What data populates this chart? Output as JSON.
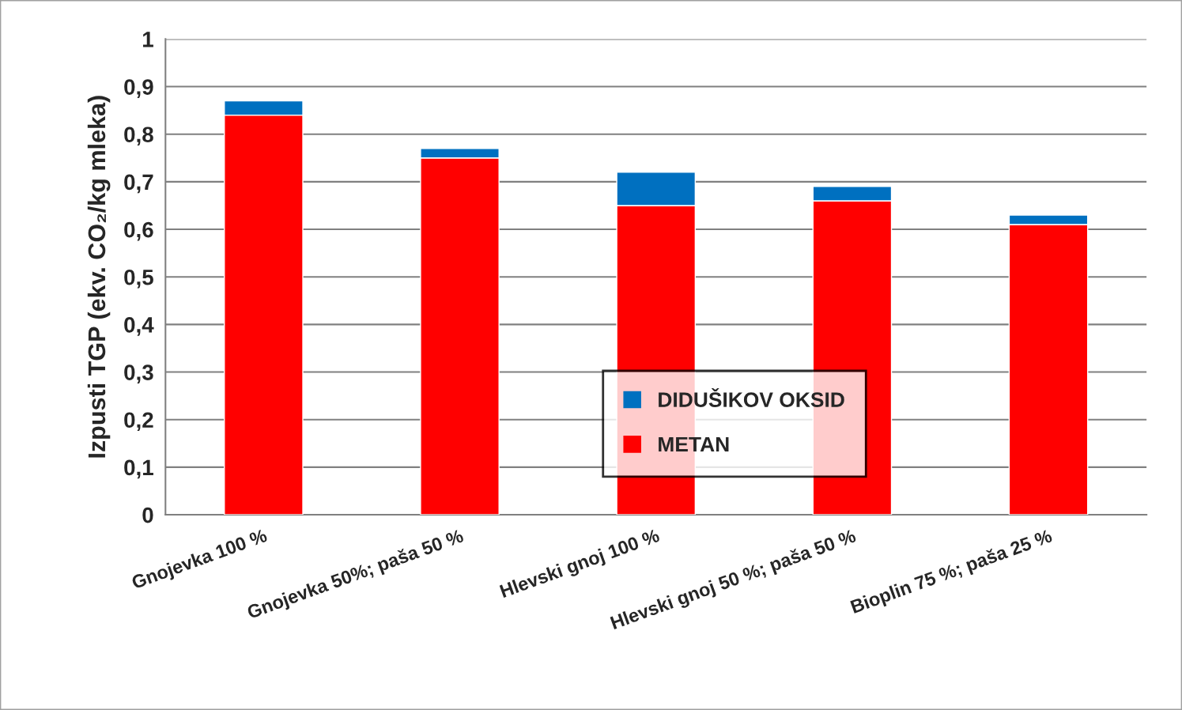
{
  "chart_data": {
    "type": "bar",
    "stacked": true,
    "ylabel": "Izpusti TGP (ekv. CO₂/kg mleka)",
    "categories": [
      "Gnojevka 100 %",
      "Gnojevka 50%; paša 50 %",
      "Hlevski gnoj 100 %",
      "Hlevski gnoj 50 %; paša 50 %",
      "Bioplin 75 %; paša 25 %"
    ],
    "series": [
      {
        "name": "METAN",
        "color": "#ff0000",
        "values": [
          0.84,
          0.75,
          0.65,
          0.66,
          0.61
        ]
      },
      {
        "name": "DIDUŠIKOV OKSID",
        "color": "#0070c0",
        "values": [
          0.03,
          0.02,
          0.07,
          0.03,
          0.02
        ]
      }
    ],
    "ylim": [
      0,
      1
    ],
    "yticks": [
      0,
      {
        "value": 0.1,
        "label": "0,1"
      },
      {
        "value": 0.2,
        "label": "0,2"
      },
      {
        "value": 0.3,
        "label": "0,3"
      },
      {
        "value": 0.4,
        "label": "0,4"
      },
      {
        "value": 0.5,
        "label": "0,5"
      },
      {
        "value": 0.6,
        "label": "0,6"
      },
      {
        "value": 0.7,
        "label": "0,7"
      },
      {
        "value": 0.8,
        "label": "0,8"
      },
      {
        "value": 0.9,
        "label": "0,9"
      },
      1
    ],
    "grid": "y",
    "legend": "bottom"
  }
}
